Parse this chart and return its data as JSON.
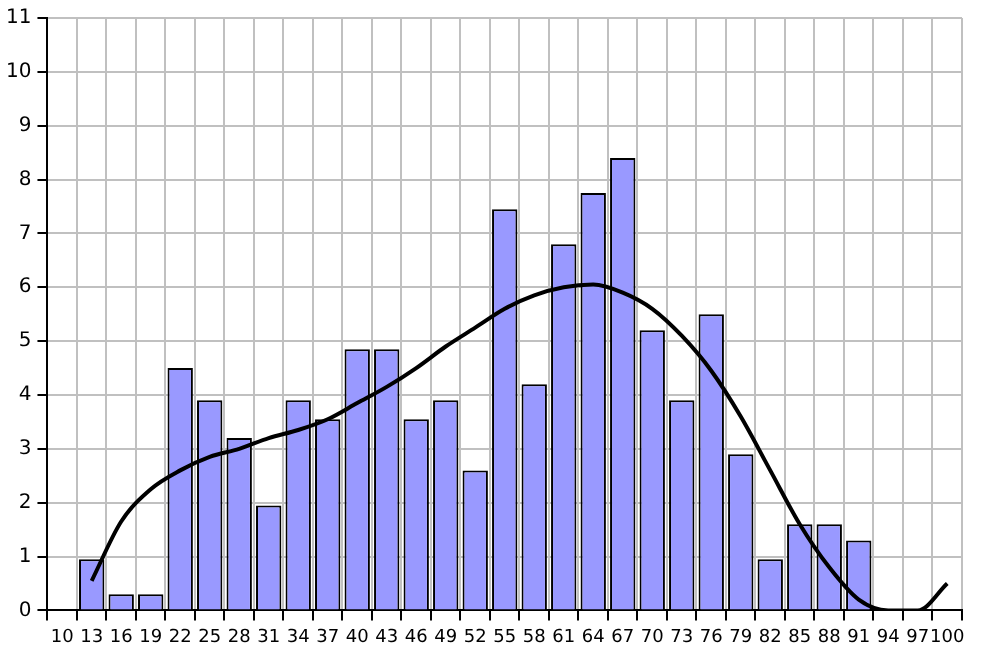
{
  "chart_data": {
    "type": "bar",
    "categories": [
      "10",
      "13",
      "16",
      "19",
      "22",
      "25",
      "28",
      "31",
      "34",
      "37",
      "40",
      "43",
      "46",
      "49",
      "52",
      "55",
      "58",
      "61",
      "64",
      "67",
      "70",
      "73",
      "76",
      "79",
      "82",
      "85",
      "88",
      "91",
      "94",
      "97",
      "100"
    ],
    "series": [
      {
        "color": "#9999ff",
        "values": [
          null,
          0.95,
          0.3,
          0.3,
          4.5,
          3.9,
          3.2,
          1.95,
          3.9,
          3.55,
          4.85,
          4.85,
          3.55,
          3.9,
          2.6,
          7.45,
          4.2,
          6.8,
          7.75,
          8.4,
          5.2,
          3.9,
          5.5,
          2.9,
          0.95,
          1.6,
          1.6,
          1.3,
          null,
          null,
          null
        ]
      },
      {
        "type": "line",
        "color": "#000000",
        "values": [
          null,
          0.55,
          1.65,
          2.25,
          2.6,
          2.85,
          3.0,
          3.2,
          3.35,
          3.55,
          3.85,
          4.15,
          4.5,
          4.9,
          5.25,
          5.6,
          5.85,
          6.0,
          6.05,
          5.9,
          5.6,
          5.1,
          4.45,
          3.6,
          2.6,
          1.6,
          0.8,
          0.2,
          0,
          0,
          0.5
        ]
      }
    ],
    "ylim": [
      0,
      11
    ],
    "yticks": [
      0,
      1,
      2,
      3,
      4,
      5,
      6,
      7,
      8,
      9,
      10,
      11
    ],
    "grid": true,
    "legend": false,
    "marker": "none"
  }
}
